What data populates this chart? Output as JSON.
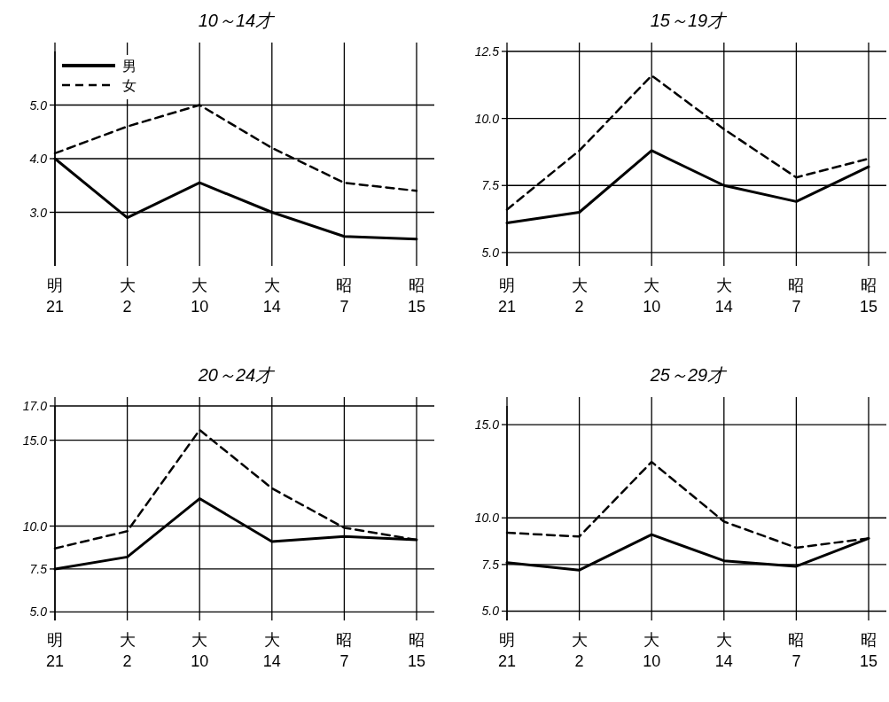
{
  "chart_data": [
    {
      "type": "line",
      "title": "10～14才",
      "categories": [
        "明\n21",
        "大\n2",
        "大\n10",
        "大\n14",
        "昭\n7",
        "昭\n15"
      ],
      "ylim": [
        2.0,
        6.0
      ],
      "yticks": [
        {
          "value": 3.0,
          "label": "3.0"
        },
        {
          "value": 4.0,
          "label": "4.0"
        },
        {
          "value": 5.0,
          "label": "5.0"
        }
      ],
      "grid": true,
      "legend": "top left",
      "series": [
        {
          "name": "男",
          "color": "#000000",
          "line_style": "solid",
          "values": [
            4.0,
            2.9,
            3.55,
            3.0,
            2.55,
            2.5
          ]
        },
        {
          "name": "女",
          "color": "#000000",
          "line_style": "dashed",
          "values": [
            4.1,
            4.6,
            5.0,
            4.2,
            3.55,
            3.4
          ]
        }
      ]
    },
    {
      "type": "line",
      "title": "15～19才",
      "categories": [
        "明\n21",
        "大\n2",
        "大\n10",
        "大\n14",
        "昭\n7",
        "昭\n15"
      ],
      "ylim": [
        4.5,
        12.5
      ],
      "yticks": [
        {
          "value": 5.0,
          "label": "5.0"
        },
        {
          "value": 7.5,
          "label": "7.5"
        },
        {
          "value": 10.0,
          "label": "10.0"
        },
        {
          "value": 12.5,
          "label": "12.5"
        }
      ],
      "grid": true,
      "series": [
        {
          "color": "#000000",
          "line_style": "solid",
          "values": [
            6.1,
            6.5,
            8.8,
            7.5,
            6.9,
            8.2
          ]
        },
        {
          "color": "#000000",
          "line_style": "dashed",
          "values": [
            6.6,
            8.8,
            11.6,
            9.6,
            7.8,
            8.5
          ]
        }
      ]
    },
    {
      "type": "line",
      "title": "20～24才",
      "categories": [
        "明\n21",
        "大\n2",
        "大\n10",
        "大\n14",
        "昭\n7",
        "昭\n15"
      ],
      "ylim": [
        4.5,
        17.0
      ],
      "yticks": [
        {
          "value": 5.0,
          "label": "5.0"
        },
        {
          "value": 7.5,
          "label": "7.5"
        },
        {
          "value": 10.0,
          "label": "10.0"
        },
        {
          "value": 15.0,
          "label": "15.0"
        },
        {
          "value": 17.0,
          "label": "17.0"
        }
      ],
      "grid": true,
      "series": [
        {
          "color": "#000000",
          "line_style": "solid",
          "values": [
            7.5,
            8.2,
            11.6,
            9.1,
            9.4,
            9.2
          ]
        },
        {
          "color": "#000000",
          "line_style": "dashed",
          "values": [
            8.7,
            9.7,
            15.6,
            12.2,
            9.9,
            9.2
          ]
        }
      ]
    },
    {
      "type": "line",
      "title": "25～29才",
      "categories": [
        "明\n21",
        "大\n2",
        "大\n10",
        "大\n14",
        "昭\n7",
        "昭\n15"
      ],
      "ylim": [
        4.5,
        16.0
      ],
      "yticks": [
        {
          "value": 5.0,
          "label": "5.0"
        },
        {
          "value": 7.5,
          "label": "7.5"
        },
        {
          "value": 10.0,
          "label": "10.0"
        },
        {
          "value": 15.0,
          "label": "15.0"
        }
      ],
      "grid": true,
      "series": [
        {
          "color": "#000000",
          "line_style": "solid",
          "values": [
            7.6,
            7.2,
            9.1,
            7.7,
            7.4,
            8.9
          ]
        },
        {
          "color": "#000000",
          "line_style": "dashed",
          "values": [
            9.2,
            9.0,
            13.0,
            9.8,
            8.4,
            8.9
          ]
        }
      ]
    }
  ]
}
